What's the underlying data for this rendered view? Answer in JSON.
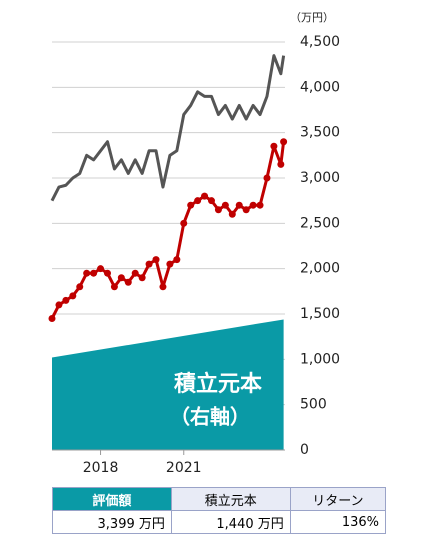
{
  "chart_data": {
    "type": "line",
    "unit_label": "（万円）",
    "annotation": [
      "積立元本",
      "（右軸）"
    ],
    "x": [
      2016.25,
      2016.5,
      2016.75,
      2017.0,
      2017.25,
      2017.5,
      2017.75,
      2018.0,
      2018.25,
      2018.5,
      2018.75,
      2019.0,
      2019.25,
      2019.5,
      2019.75,
      2020.0,
      2020.25,
      2020.5,
      2020.75,
      2021.0,
      2021.25,
      2021.5,
      2021.75,
      2022.0,
      2022.25,
      2022.5,
      2022.75,
      2023.0,
      2023.25,
      2023.5,
      2023.75,
      2024.0,
      2024.25,
      2024.5,
      2024.6
    ],
    "series": [
      {
        "type": "line",
        "color": "#555555",
        "values": [
          2750,
          2900,
          2920,
          3000,
          3050,
          3250,
          3200,
          3300,
          3400,
          3100,
          3200,
          3050,
          3200,
          3050,
          3300,
          3300,
          2900,
          3250,
          3300,
          3700,
          3800,
          3950,
          3900,
          3900,
          3700,
          3800,
          3650,
          3800,
          3650,
          3800,
          3700,
          3900,
          4350,
          4150,
          4350
        ]
      },
      {
        "type": "line",
        "color": "#c00000",
        "markers": true,
        "values": [
          1450,
          1600,
          1650,
          1700,
          1800,
          1950,
          1950,
          2000,
          1950,
          1800,
          1900,
          1850,
          1950,
          1900,
          2050,
          2100,
          1800,
          2050,
          2100,
          2500,
          2700,
          2750,
          2800,
          2750,
          2650,
          2700,
          2600,
          2700,
          2650,
          2700,
          2700,
          3000,
          3350,
          3150,
          3400
        ]
      },
      {
        "type": "area",
        "color": "#0a9aa6",
        "x": [
          2016.25,
          2024.6
        ],
        "values": [
          1020,
          1440
        ]
      }
    ],
    "xlim": [
      2016.25,
      2024.65
    ],
    "xticks": [
      2018,
      2021
    ],
    "ylim": [
      0,
      4500
    ],
    "yticks": [
      {
        "value": 4500,
        "label": "4,500"
      },
      {
        "value": 4000,
        "label": "4,000"
      },
      {
        "value": 3500,
        "label": "3,500"
      },
      {
        "value": 3000,
        "label": "3,000"
      },
      {
        "value": 2500,
        "label": "2,500"
      },
      {
        "value": 2000,
        "label": "2,000"
      },
      {
        "value": 1500,
        "label": "1,500"
      },
      {
        "value": 1000,
        "label": "1,000"
      },
      500,
      0
    ],
    "grid": true
  },
  "table": {
    "header": [
      "評価額",
      "積立元本",
      "リターン"
    ],
    "rows": [
      [
        "3,399 万円",
        "1,440 万円",
        "136%"
      ]
    ]
  }
}
